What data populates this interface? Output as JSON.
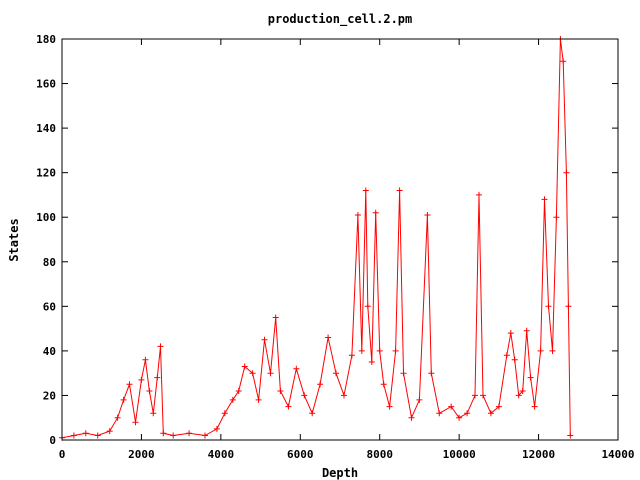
{
  "chart_data": {
    "type": "line",
    "title": "production_cell.2.pm",
    "xlabel": "Depth",
    "ylabel": "States",
    "xlim": [
      0,
      14000
    ],
    "ylim": [
      0,
      180
    ],
    "xticks": [
      0,
      2000,
      4000,
      6000,
      8000,
      10000,
      12000,
      14000
    ],
    "yticks": [
      0,
      20,
      40,
      60,
      80,
      100,
      120,
      140,
      160,
      180
    ],
    "grid": false,
    "legend": "none",
    "marker": "plus",
    "color": "#ff0000",
    "series": [
      {
        "points": [
          [
            0,
            1
          ],
          [
            300,
            2
          ],
          [
            600,
            3
          ],
          [
            900,
            2
          ],
          [
            1200,
            4
          ],
          [
            1400,
            10
          ],
          [
            1550,
            18
          ],
          [
            1700,
            25
          ],
          [
            1850,
            8
          ],
          [
            2000,
            27
          ],
          [
            2100,
            36
          ],
          [
            2200,
            22
          ],
          [
            2300,
            12
          ],
          [
            2400,
            28
          ],
          [
            2480,
            42
          ],
          [
            2550,
            3
          ],
          [
            2800,
            2
          ],
          [
            3200,
            3
          ],
          [
            3600,
            2
          ],
          [
            3900,
            5
          ],
          [
            4100,
            12
          ],
          [
            4300,
            18
          ],
          [
            4450,
            22
          ],
          [
            4600,
            33
          ],
          [
            4800,
            30
          ],
          [
            4950,
            18
          ],
          [
            5100,
            45
          ],
          [
            5250,
            30
          ],
          [
            5380,
            55
          ],
          [
            5500,
            22
          ],
          [
            5700,
            15
          ],
          [
            5900,
            32
          ],
          [
            6100,
            20
          ],
          [
            6300,
            12
          ],
          [
            6500,
            25
          ],
          [
            6700,
            46
          ],
          [
            6900,
            30
          ],
          [
            7100,
            20
          ],
          [
            7300,
            38
          ],
          [
            7450,
            101
          ],
          [
            7550,
            40
          ],
          [
            7650,
            112
          ],
          [
            7700,
            60
          ],
          [
            7800,
            35
          ],
          [
            7900,
            102
          ],
          [
            8000,
            40
          ],
          [
            8100,
            25
          ],
          [
            8250,
            15
          ],
          [
            8400,
            40
          ],
          [
            8500,
            112
          ],
          [
            8600,
            30
          ],
          [
            8800,
            10
          ],
          [
            9000,
            18
          ],
          [
            9200,
            101
          ],
          [
            9300,
            30
          ],
          [
            9500,
            12
          ],
          [
            9800,
            15
          ],
          [
            10000,
            10
          ],
          [
            10200,
            12
          ],
          [
            10400,
            20
          ],
          [
            10500,
            110
          ],
          [
            10600,
            20
          ],
          [
            10800,
            12
          ],
          [
            11000,
            15
          ],
          [
            11200,
            38
          ],
          [
            11300,
            48
          ],
          [
            11400,
            36
          ],
          [
            11500,
            20
          ],
          [
            11600,
            22
          ],
          [
            11700,
            49
          ],
          [
            11800,
            28
          ],
          [
            11900,
            15
          ],
          [
            12050,
            40
          ],
          [
            12150,
            108
          ],
          [
            12250,
            60
          ],
          [
            12350,
            40
          ],
          [
            12450,
            100
          ],
          [
            12550,
            180
          ],
          [
            12620,
            170
          ],
          [
            12700,
            120
          ],
          [
            12750,
            60
          ],
          [
            12800,
            2
          ]
        ]
      }
    ]
  }
}
